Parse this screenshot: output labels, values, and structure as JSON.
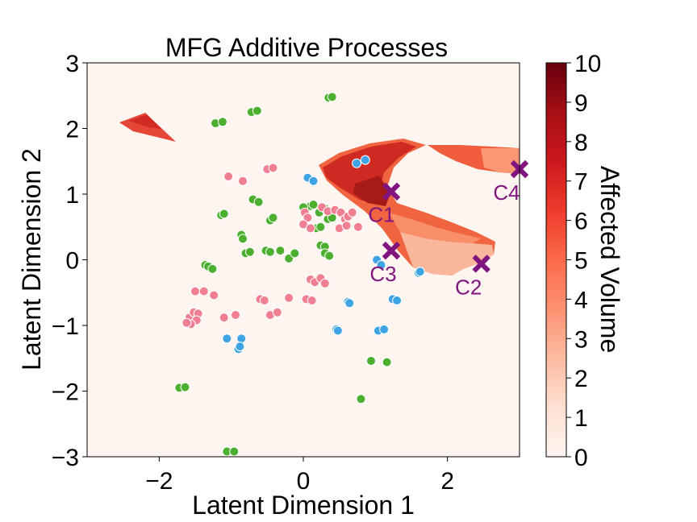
{
  "chart_data": {
    "type": "scatter",
    "title": "MFG Additive Processes",
    "xlabel": "Latent Dimension 1",
    "ylabel": "Latent Dimension 2",
    "xlim": [
      -3,
      3
    ],
    "ylim": [
      -3,
      3
    ],
    "xticks": [
      "−2",
      "0",
      "2"
    ],
    "xtick_values": [
      -2,
      0,
      2
    ],
    "yticks": [
      "−3",
      "−2",
      "−1",
      "0",
      "1",
      "2",
      "3"
    ],
    "ytick_values": [
      -3,
      -2,
      -1,
      0,
      1,
      2,
      3
    ],
    "grid": false,
    "legend": "none",
    "colorbar": {
      "label": "Affected Volume",
      "range": [
        0,
        10
      ],
      "ticks": [
        "0",
        "1",
        "2",
        "3",
        "4",
        "5",
        "6",
        "7",
        "8",
        "9",
        "10"
      ],
      "colormap": [
        "#fff5f0",
        "#fee0d2",
        "#fcbba1",
        "#fc9272",
        "#fb6a4a",
        "#ef3b2c",
        "#cb181d",
        "#a50f15",
        "#67000d"
      ]
    },
    "background_color": "#fff5f0",
    "series": [
      {
        "color": "#4daf2f",
        "points": [
          [
            0.35,
            2.47
          ],
          [
            0.4,
            2.48
          ],
          [
            -0.72,
            2.25
          ],
          [
            -0.64,
            2.27
          ],
          [
            -1.22,
            2.08
          ],
          [
            -1.12,
            2.1
          ],
          [
            -0.7,
            0.92
          ],
          [
            -0.62,
            0.88
          ],
          [
            -0.46,
            0.6
          ],
          [
            -0.42,
            0.64
          ],
          [
            0.1,
            0.82
          ],
          [
            0.14,
            0.84
          ],
          [
            0.0,
            0.8
          ],
          [
            0.22,
            0.72
          ],
          [
            0.3,
            0.78
          ],
          [
            0.34,
            0.62
          ],
          [
            0.4,
            0.64
          ],
          [
            0.18,
            0.48
          ],
          [
            0.24,
            0.5
          ],
          [
            -1.14,
            0.68
          ],
          [
            -1.1,
            0.7
          ],
          [
            -0.86,
            0.38
          ],
          [
            -0.84,
            0.32
          ],
          [
            -0.8,
            0.1
          ],
          [
            -0.74,
            0.12
          ],
          [
            -0.52,
            0.14
          ],
          [
            -0.46,
            0.12
          ],
          [
            -0.32,
            0.14
          ],
          [
            -0.2,
            0.02
          ],
          [
            -0.12,
            0.1
          ],
          [
            0.24,
            0.22
          ],
          [
            0.3,
            0.2
          ],
          [
            0.3,
            0.1
          ],
          [
            0.36,
            0.06
          ],
          [
            -1.36,
            -0.08
          ],
          [
            -1.32,
            -0.1
          ],
          [
            -1.26,
            -0.14
          ],
          [
            -1.72,
            -1.95
          ],
          [
            -1.64,
            -1.94
          ],
          [
            0.94,
            -1.54
          ],
          [
            1.16,
            -1.56
          ],
          [
            0.8,
            -2.12
          ],
          [
            -1.06,
            -2.92
          ],
          [
            -0.96,
            -2.92
          ]
        ]
      },
      {
        "color": "#f07f92",
        "points": [
          [
            -1.04,
            1.27
          ],
          [
            -0.84,
            1.2
          ],
          [
            -0.5,
            1.38
          ],
          [
            -0.42,
            1.4
          ],
          [
            0.02,
            0.72
          ],
          [
            0.06,
            0.64
          ],
          [
            0.26,
            0.8
          ],
          [
            0.34,
            0.74
          ],
          [
            0.44,
            0.76
          ],
          [
            0.52,
            0.72
          ],
          [
            0.58,
            0.62
          ],
          [
            0.62,
            0.66
          ],
          [
            0.68,
            0.72
          ],
          [
            0.76,
            0.5
          ],
          [
            0.5,
            0.48
          ],
          [
            0.6,
            0.52
          ],
          [
            0.0,
            0.54
          ],
          [
            0.1,
            0.48
          ],
          [
            -1.5,
            -0.48
          ],
          [
            -1.38,
            -0.48
          ],
          [
            -1.24,
            -0.54
          ],
          [
            -1.58,
            -0.88
          ],
          [
            -1.52,
            -0.8
          ],
          [
            -1.46,
            -0.82
          ],
          [
            -1.48,
            -0.92
          ],
          [
            -1.56,
            -0.98
          ],
          [
            -1.62,
            -0.96
          ],
          [
            -1.1,
            -0.88
          ],
          [
            -0.94,
            -0.84
          ],
          [
            -0.6,
            -0.6
          ],
          [
            -0.54,
            -0.62
          ],
          [
            -0.46,
            -0.84
          ],
          [
            -0.36,
            -0.8
          ],
          [
            -0.2,
            -0.58
          ],
          [
            0.04,
            -0.6
          ],
          [
            0.1,
            -0.3
          ],
          [
            0.16,
            -0.34
          ],
          [
            0.24,
            -0.28
          ],
          [
            0.3,
            -0.36
          ],
          [
            0.12,
            -0.62
          ]
        ]
      },
      {
        "color": "#3fa4e4",
        "points": [
          [
            0.74,
            1.47
          ],
          [
            0.86,
            1.52
          ],
          [
            0.06,
            1.25
          ],
          [
            0.14,
            1.2
          ],
          [
            1.02,
            0.0
          ],
          [
            1.08,
            -0.08
          ],
          [
            1.24,
            -0.6
          ],
          [
            1.3,
            -0.62
          ],
          [
            1.6,
            -0.2
          ],
          [
            1.62,
            -0.18
          ],
          [
            0.62,
            -0.64
          ],
          [
            0.64,
            -0.66
          ],
          [
            0.46,
            -1.06
          ],
          [
            0.48,
            -1.08
          ],
          [
            1.04,
            -1.08
          ],
          [
            1.12,
            -1.06
          ],
          [
            -1.06,
            -1.2
          ],
          [
            -0.86,
            -1.2
          ],
          [
            -0.9,
            -1.36
          ],
          [
            -0.88,
            -1.32
          ]
        ]
      }
    ],
    "centers": [
      {
        "label": "C1",
        "x": 1.22,
        "y": 1.04
      },
      {
        "label": "C2",
        "x": 2.47,
        "y": -0.06
      },
      {
        "label": "C3",
        "x": 1.22,
        "y": 0.14
      },
      {
        "label": "C4",
        "x": 3.0,
        "y": 1.38
      }
    ],
    "center_color": "#80157f"
  }
}
